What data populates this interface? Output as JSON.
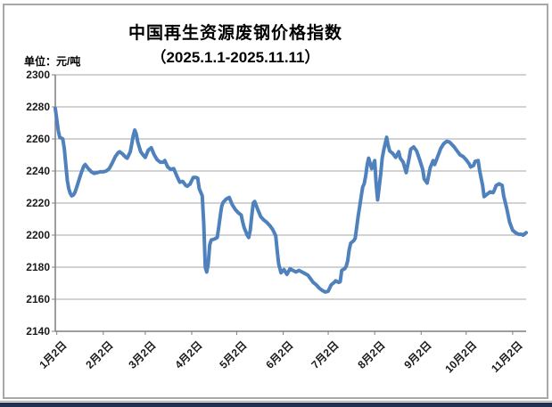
{
  "title": {
    "line1": "中国再生资源废钢价格指数",
    "line2": "（2025.1.1-2025.11.11）"
  },
  "unit_label": "单位：元/吨",
  "colors": {
    "line": "#4F81BD",
    "grid": "#A6A6A6",
    "axis": "#7F7F7F",
    "frame": "#A8A8A8",
    "bottom_strip": "#1F3050",
    "text": "#1A1A1A"
  },
  "chart_data": {
    "type": "line",
    "title": "中国再生资源废钢价格指数（2025.1.1-2025.11.11）",
    "unit": "元/吨",
    "x_start_date": "2025-01-01",
    "x_end_date": "2025-11-11",
    "x_total_days": 314,
    "ylim": [
      2140,
      2300
    ],
    "ytick_interval": 20,
    "yticks": [
      2300,
      2280,
      2260,
      2240,
      2220,
      2200,
      2180,
      2160,
      2140
    ],
    "xtick_labels": [
      "1月2日",
      "2月2日",
      "3月2日",
      "4月2日",
      "5月2日",
      "6月2日",
      "7月2日",
      "8月2日",
      "9月2日",
      "10月2日",
      "11月2日"
    ],
    "xtick_day_offsets": [
      1,
      32,
      60,
      91,
      121,
      152,
      182,
      213,
      244,
      274,
      305
    ],
    "grid": true,
    "legend": "none",
    "series": [
      {
        "name": "废钢价格指数",
        "color": "#4F81BD",
        "points": [
          [
            0,
            2279
          ],
          [
            1,
            2272
          ],
          [
            2,
            2265
          ],
          [
            3,
            2261
          ],
          [
            5,
            2260
          ],
          [
            6,
            2254
          ],
          [
            7,
            2244
          ],
          [
            8,
            2234
          ],
          [
            9,
            2229
          ],
          [
            10,
            2226
          ],
          [
            11,
            2224.5
          ],
          [
            12,
            2225
          ],
          [
            13,
            2226.5
          ],
          [
            14,
            2229
          ],
          [
            16,
            2235
          ],
          [
            17,
            2238
          ],
          [
            19,
            2243
          ],
          [
            20,
            2244
          ],
          [
            22,
            2241.5
          ],
          [
            24,
            2239.5
          ],
          [
            26,
            2238.5
          ],
          [
            28,
            2239
          ],
          [
            30,
            2239.5
          ],
          [
            32,
            2239.5
          ],
          [
            34,
            2240
          ],
          [
            36,
            2241.5
          ],
          [
            38,
            2245
          ],
          [
            40,
            2249
          ],
          [
            42,
            2251.5
          ],
          [
            43,
            2252
          ],
          [
            45,
            2250.5
          ],
          [
            47,
            2248.5
          ],
          [
            48,
            2248
          ],
          [
            50,
            2252
          ],
          [
            51,
            2257
          ],
          [
            52,
            2262
          ],
          [
            53,
            2265.5
          ],
          [
            54,
            2263
          ],
          [
            55,
            2258
          ],
          [
            57,
            2252
          ],
          [
            59,
            2249.5
          ],
          [
            60,
            2248.5
          ],
          [
            62,
            2253
          ],
          [
            64,
            2254.5
          ],
          [
            66,
            2250
          ],
          [
            68,
            2247
          ],
          [
            70,
            2245.5
          ],
          [
            72,
            2245.5
          ],
          [
            73,
            2246.5
          ],
          [
            75,
            2242.5
          ],
          [
            77,
            2241
          ],
          [
            79,
            2241.5
          ],
          [
            81,
            2237
          ],
          [
            83,
            2233
          ],
          [
            85,
            2233.5
          ],
          [
            87,
            2231
          ],
          [
            88,
            2230.5
          ],
          [
            90,
            2232
          ],
          [
            92,
            2236
          ],
          [
            94,
            2236
          ],
          [
            95,
            2235.5
          ],
          [
            96,
            2229
          ],
          [
            98,
            2224.5
          ],
          [
            99,
            2207
          ],
          [
            100,
            2180
          ],
          [
            101,
            2177
          ],
          [
            102,
            2182
          ],
          [
            103,
            2194
          ],
          [
            104,
            2197
          ],
          [
            106,
            2197.5
          ],
          [
            108,
            2198.5
          ],
          [
            109,
            2205
          ],
          [
            110,
            2212
          ],
          [
            111,
            2218
          ],
          [
            112,
            2220.5
          ],
          [
            114,
            2222.5
          ],
          [
            116,
            2223.5
          ],
          [
            118,
            2219
          ],
          [
            120,
            2216
          ],
          [
            122,
            2214
          ],
          [
            124,
            2212.5
          ],
          [
            125,
            2208
          ],
          [
            126,
            2204.5
          ],
          [
            128,
            2200
          ],
          [
            129,
            2198.5
          ],
          [
            130,
            2203
          ],
          [
            131,
            2212
          ],
          [
            132,
            2220
          ],
          [
            133,
            2221
          ],
          [
            134,
            2218.5
          ],
          [
            135,
            2216
          ],
          [
            137,
            2211.5
          ],
          [
            139,
            2209.5
          ],
          [
            141,
            2208
          ],
          [
            143,
            2206
          ],
          [
            145,
            2203.5
          ],
          [
            147,
            2199.5
          ],
          [
            148,
            2190
          ],
          [
            149,
            2182
          ],
          [
            150.5,
            2176.5
          ],
          [
            152.5,
            2178.5
          ],
          [
            154.5,
            2175.5
          ],
          [
            156.5,
            2179
          ],
          [
            158.5,
            2178
          ],
          [
            160.5,
            2177
          ],
          [
            162.5,
            2178
          ],
          [
            164.5,
            2177
          ],
          [
            166.5,
            2176
          ],
          [
            168.5,
            2175
          ],
          [
            170,
            2173
          ],
          [
            172,
            2170.5
          ],
          [
            174,
            2169
          ],
          [
            176,
            2167
          ],
          [
            178,
            2165.5
          ],
          [
            180,
            2164.5
          ],
          [
            182,
            2165
          ],
          [
            184,
            2169
          ],
          [
            186,
            2170.5
          ],
          [
            187,
            2171.5
          ],
          [
            189,
            2170.5
          ],
          [
            190,
            2171
          ],
          [
            191,
            2178
          ],
          [
            193,
            2179
          ],
          [
            194,
            2180.5
          ],
          [
            195,
            2184
          ],
          [
            196,
            2191
          ],
          [
            197,
            2195
          ],
          [
            199,
            2196.5
          ],
          [
            200,
            2198
          ],
          [
            201,
            2205
          ],
          [
            202,
            2212
          ],
          [
            203,
            2218
          ],
          [
            204,
            2224
          ],
          [
            205,
            2230
          ],
          [
            206,
            2232
          ],
          [
            207,
            2237
          ],
          [
            208,
            2244
          ],
          [
            209,
            2248
          ],
          [
            211,
            2241.5
          ],
          [
            213,
            2246.5
          ],
          [
            214,
            2232
          ],
          [
            215,
            2222
          ],
          [
            216,
            2230
          ],
          [
            217,
            2238
          ],
          [
            218,
            2248
          ],
          [
            219,
            2253
          ],
          [
            220,
            2257
          ],
          [
            221,
            2261
          ],
          [
            222,
            2256
          ],
          [
            223,
            2252.5
          ],
          [
            225,
            2251
          ],
          [
            227,
            2248.5
          ],
          [
            229,
            2252
          ],
          [
            230,
            2248
          ],
          [
            232,
            2245.5
          ],
          [
            234,
            2239
          ],
          [
            236,
            2248
          ],
          [
            237,
            2253.5
          ],
          [
            239,
            2255
          ],
          [
            241,
            2252.5
          ],
          [
            243,
            2247
          ],
          [
            245,
            2241
          ],
          [
            246,
            2235
          ],
          [
            248,
            2232.5
          ],
          [
            250,
            2242
          ],
          [
            252,
            2246.5
          ],
          [
            253,
            2244
          ],
          [
            255,
            2249
          ],
          [
            257,
            2254
          ],
          [
            259,
            2257
          ],
          [
            261,
            2258.5
          ],
          [
            263,
            2258
          ],
          [
            264,
            2257
          ],
          [
            266,
            2255
          ],
          [
            268,
            2252.5
          ],
          [
            270,
            2250
          ],
          [
            272,
            2249
          ],
          [
            274,
            2247
          ],
          [
            276,
            2244.5
          ],
          [
            277,
            2242.5
          ],
          [
            279,
            2243.5
          ],
          [
            280,
            2246
          ],
          [
            282,
            2246.5
          ],
          [
            283,
            2240
          ],
          [
            285,
            2231
          ],
          [
            286,
            2224
          ],
          [
            288,
            2225.5
          ],
          [
            290,
            2227
          ],
          [
            292,
            2226.5
          ],
          [
            293,
            2228.5
          ],
          [
            294,
            2231
          ],
          [
            296,
            2232
          ],
          [
            298,
            2231
          ],
          [
            299,
            2224.5
          ],
          [
            301,
            2217
          ],
          [
            303,
            2208
          ],
          [
            305,
            2203
          ],
          [
            307,
            2201.5
          ],
          [
            309,
            2200.5
          ],
          [
            311,
            2200.5
          ],
          [
            312,
            2200
          ],
          [
            314,
            2201.5
          ]
        ]
      }
    ]
  }
}
